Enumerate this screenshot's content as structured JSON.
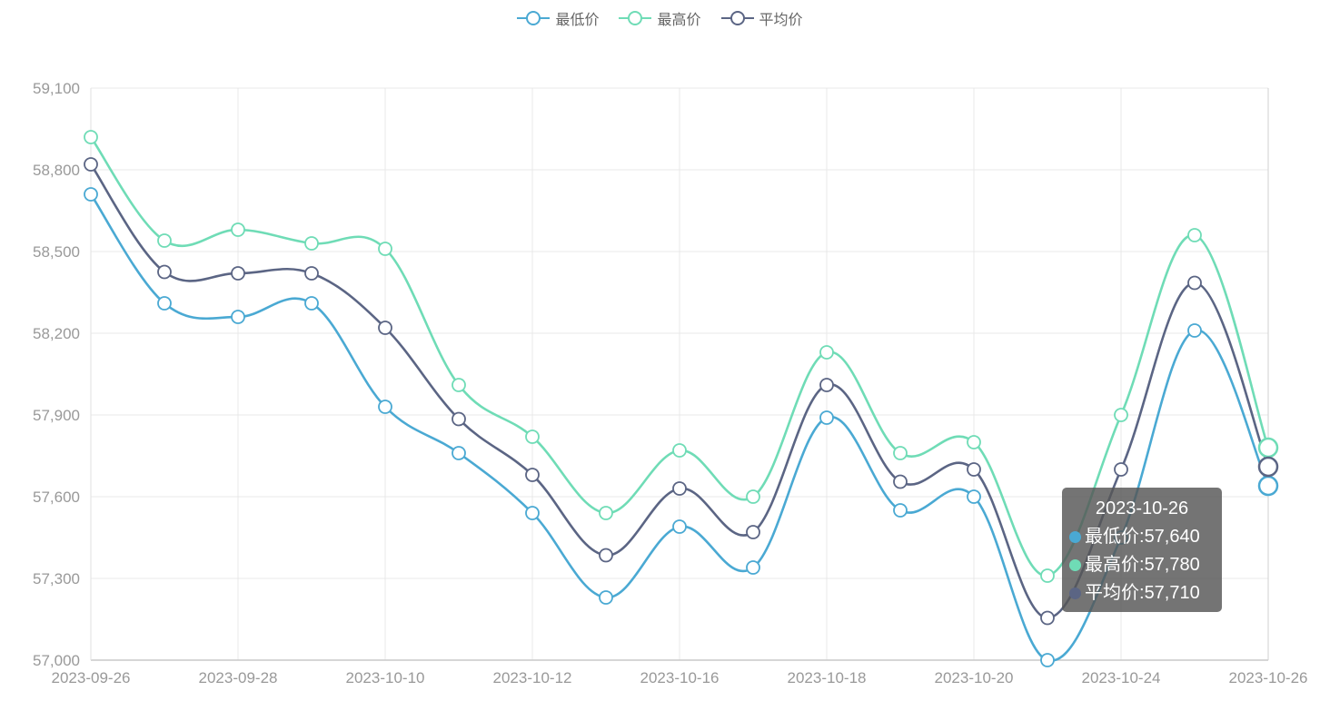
{
  "legend": {
    "items": [
      {
        "label": "最低价",
        "color": "#4aa9d3"
      },
      {
        "label": "最高价",
        "color": "#6fdcb6"
      },
      {
        "label": "平均价",
        "color": "#5b6584"
      }
    ]
  },
  "tooltip": {
    "title": "2023-10-26",
    "rows": [
      {
        "label": "最低价",
        "value": "57,640",
        "color": "#4aa9d3"
      },
      {
        "label": "最高价",
        "value": "57,780",
        "color": "#6fdcb6"
      },
      {
        "label": "平均价",
        "value": "57,710",
        "color": "#5b6584"
      }
    ]
  },
  "chart_data": {
    "type": "line",
    "smooth": true,
    "x_tick_labels": [
      "2023-09-26",
      "2023-09-28",
      "2023-10-10",
      "2023-10-12",
      "2023-10-16",
      "2023-10-18",
      "2023-10-20",
      "2023-10-24",
      "2023-10-26"
    ],
    "x_tick_every": 2,
    "ylim": [
      57000,
      59100
    ],
    "yticks": [
      57000,
      57300,
      57600,
      57900,
      58200,
      58500,
      58800,
      59100
    ],
    "ytick_labels": [
      "57,000",
      "57,300",
      "57,600",
      "57,900",
      "58,200",
      "58,500",
      "58,800",
      "59,100"
    ],
    "grid": true,
    "legend_position": "top-center",
    "series": [
      {
        "name": "最低价",
        "color": "#4aa9d3",
        "values": [
          58710,
          58310,
          58260,
          58310,
          57930,
          57760,
          57540,
          57230,
          57490,
          57340,
          57890,
          57550,
          57600,
          57000,
          57450,
          58210,
          57640
        ]
      },
      {
        "name": "最高价",
        "color": "#6fdcb6",
        "values": [
          58920,
          58540,
          58580,
          58530,
          58510,
          58010,
          57820,
          57540,
          57770,
          57600,
          58130,
          57760,
          57800,
          57310,
          57900,
          58560,
          57780
        ]
      },
      {
        "name": "平均价",
        "color": "#5b6584",
        "values": [
          58820,
          58425,
          58420,
          58420,
          58220,
          57885,
          57680,
          57385,
          57630,
          57470,
          58010,
          57655,
          57700,
          57155,
          57700,
          58385,
          57710
        ]
      }
    ],
    "highlight_index": 16
  }
}
